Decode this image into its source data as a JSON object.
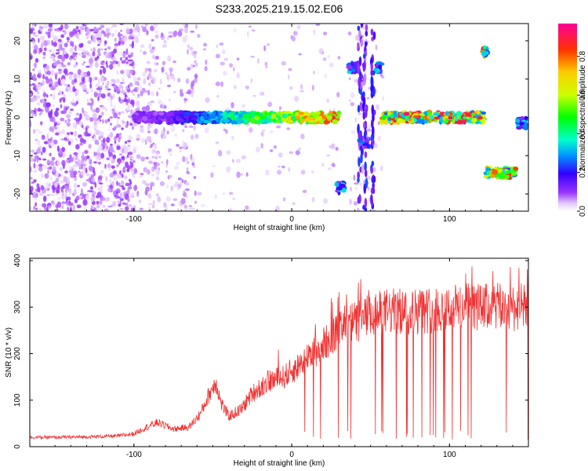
{
  "title": "S233.2025.219.15.02.E06",
  "chart_data": [
    {
      "type": "heatmap",
      "xlabel": "Height of straight line (km)",
      "ylabel": "Frequency (Hz)",
      "xlim": [
        -166,
        150
      ],
      "ylim": [
        -24.5,
        24.5
      ],
      "xticks": [
        -100,
        0,
        100
      ],
      "yticks": [
        -20,
        -10,
        0,
        10,
        20
      ],
      "colorbar": {
        "label": "Normalized spectral amplitude",
        "range": [
          0,
          0.97
        ],
        "ticks": [
          0.0,
          0.2,
          0.4,
          0.6,
          0.8
        ]
      },
      "features": [
        {
          "x_range": [
            -100,
            30
          ],
          "frequency": 0,
          "amplitude_peak": 0.95
        },
        {
          "x_range": [
            57,
            122
          ],
          "frequency": 0,
          "amplitude_peak": 0.95
        },
        {
          "x_range": [
            36,
            42
          ],
          "frequency": 13,
          "amplitude_peak": 0.35
        },
        {
          "x_range": [
            53,
            57
          ],
          "frequency": 13,
          "amplitude_peak": 0.4
        },
        {
          "x_range": [
            28,
            33
          ],
          "frequency": -18.5,
          "amplitude_peak": 0.4
        },
        {
          "x_range": [
            43,
            49
          ],
          "frequency": -6.5,
          "amplitude_peak": 0.3
        },
        {
          "x_range": [
            121,
            124
          ],
          "frequency": 17,
          "amplitude_peak": 0.9
        },
        {
          "x_range": [
            122,
            142
          ],
          "frequency": -14.5,
          "amplitude_peak": 0.9
        },
        {
          "x_range": [
            143,
            150
          ],
          "frequency": -1.5,
          "amplitude_peak": 0.4
        }
      ]
    },
    {
      "type": "line",
      "xlabel": "Height of straight line (km)",
      "ylabel": "SNR (10 * v/v)",
      "xlim": [
        -166,
        150
      ],
      "ylim": [
        0,
        405
      ],
      "xticks": [
        -100,
        0,
        100
      ],
      "yticks": [
        0,
        100,
        200,
        300,
        400
      ],
      "series": [
        {
          "color": "#f03232",
          "x": [
            -166,
            -150,
            -130,
            -110,
            -100,
            -92,
            -85,
            -75,
            -65,
            -58,
            -52,
            -48,
            -45,
            -40,
            -32,
            -25,
            -15,
            -5,
            5,
            15,
            25,
            35,
            45,
            60,
            75,
            90,
            105,
            120,
            135,
            150
          ],
          "y": [
            20,
            20,
            21,
            23,
            28,
            42,
            52,
            38,
            42,
            70,
            115,
            140,
            95,
            65,
            80,
            115,
            140,
            150,
            175,
            205,
            235,
            260,
            275,
            290,
            290,
            295,
            300,
            300,
            300,
            300
          ]
        }
      ]
    }
  ]
}
